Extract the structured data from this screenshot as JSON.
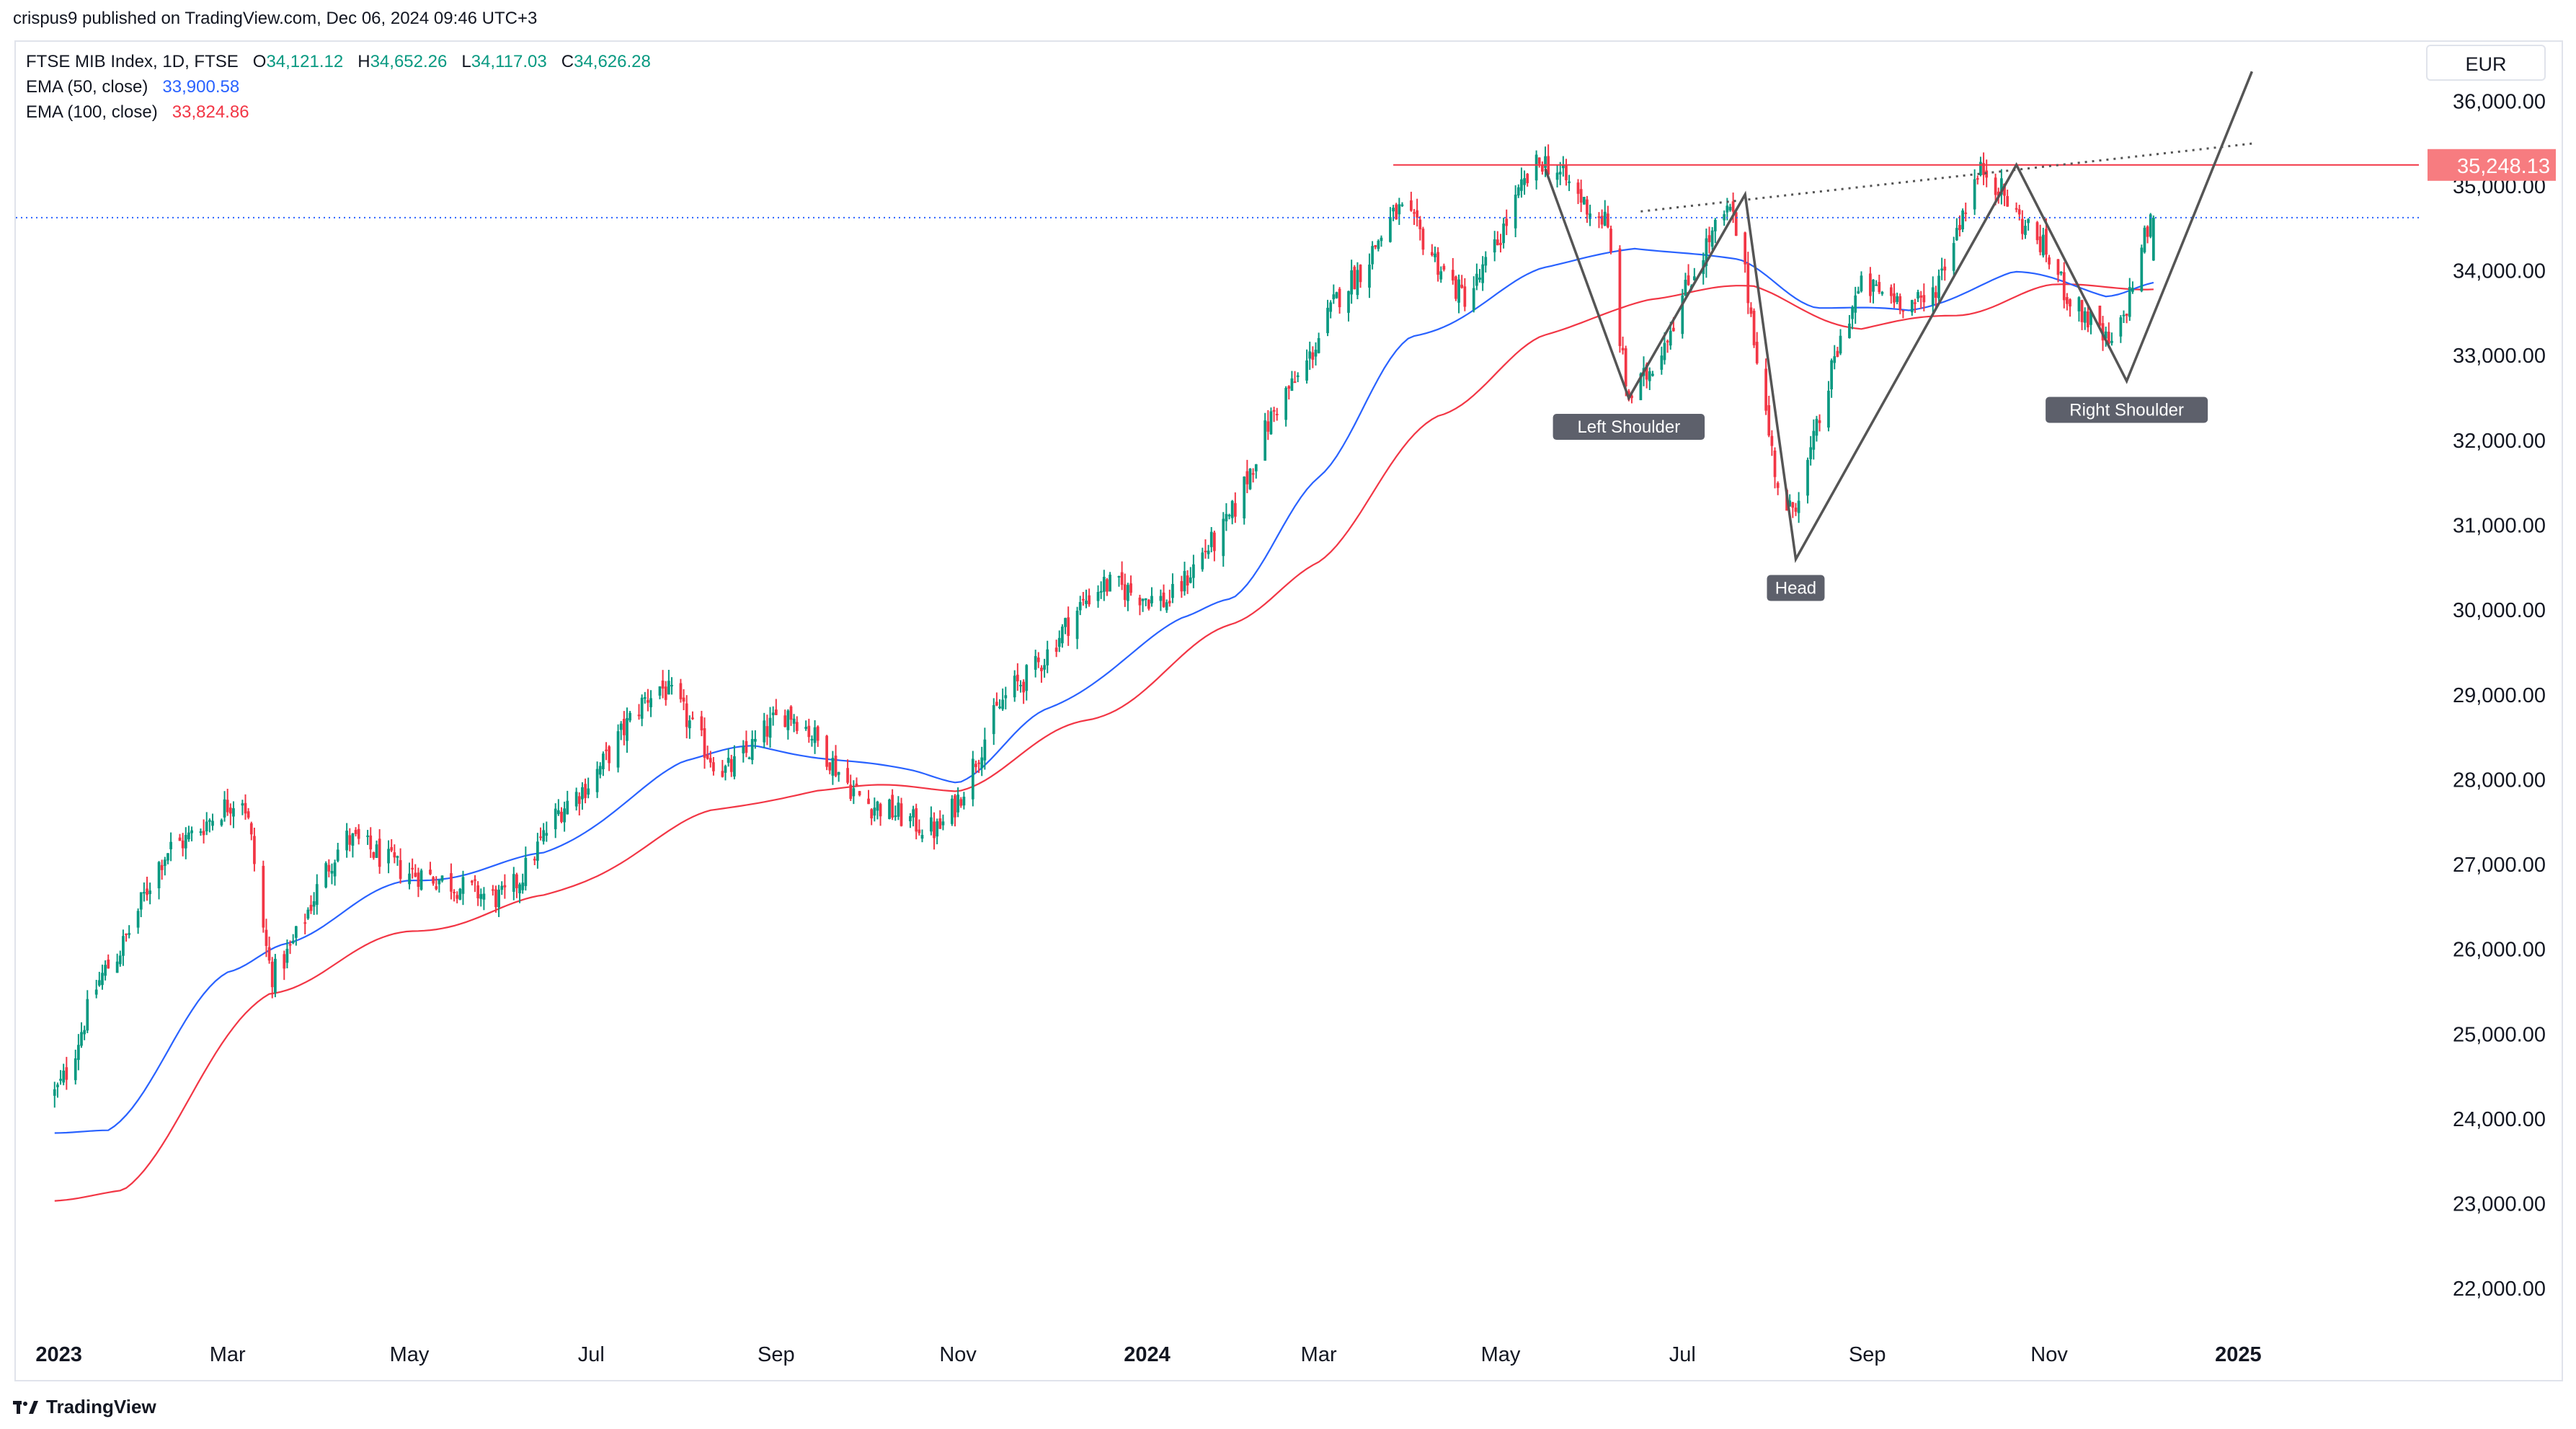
{
  "header": {
    "published": "crispus9 published on TradingView.com, Dec 06, 2024 09:46 UTC+3"
  },
  "legend": {
    "symbol": "FTSE MIB Index, 1D, FTSE",
    "ohlc_o_label": "O",
    "ohlc_o": "34,121.12",
    "ohlc_h_label": "H",
    "ohlc_h": "34,652.26",
    "ohlc_l_label": "L",
    "ohlc_l": "34,117.03",
    "ohlc_c_label": "C",
    "ohlc_c": "34,626.28",
    "ema50_label": "EMA (50, close)",
    "ema50_value": "33,900.58",
    "ema100_label": "EMA (100, close)",
    "ema100_value": "33,824.86"
  },
  "currency": "EUR",
  "footer": {
    "brand": "TradingView"
  },
  "colors": {
    "up": "#089981",
    "down": "#f23645",
    "ema50": "#2962ff",
    "ema100": "#f23645",
    "resistance": "#f23645",
    "pattern": "#555555"
  },
  "chart_data": {
    "type": "candlestick",
    "title": "FTSE MIB Index, 1D, FTSE",
    "ylim": [
      21500,
      36700
    ],
    "y_ticks": [
      "22,000.00",
      "23,000.00",
      "24,000.00",
      "25,000.00",
      "26,000.00",
      "27,000.00",
      "28,000.00",
      "29,000.00",
      "30,000.00",
      "31,000.00",
      "32,000.00",
      "33,000.00",
      "34,000.00",
      "35,000.00",
      "36,000.00"
    ],
    "x_ticks": [
      "2023",
      "Mar",
      "May",
      "Jul",
      "Sep",
      "Nov",
      "2024",
      "Mar",
      "May",
      "Jul",
      "Sep",
      "Nov",
      "2025"
    ],
    "x_ticks_bold": [
      "2023",
      "2024",
      "2025"
    ],
    "resistance_level": 35248.13,
    "resistance_label": "35,248.13",
    "last_close": 34626.28,
    "series_close_anchors": [
      [
        "2023-01-02",
        24300
      ],
      [
        "2023-01-20",
        25800
      ],
      [
        "2023-02-10",
        27200
      ],
      [
        "2023-03-06",
        27800
      ],
      [
        "2023-03-16",
        25700
      ],
      [
        "2023-04-10",
        27300
      ],
      [
        "2023-05-02",
        26900
      ],
      [
        "2023-06-01",
        26600
      ],
      [
        "2023-06-25",
        27800
      ],
      [
        "2023-07-24",
        29100
      ],
      [
        "2023-08-15",
        28100
      ],
      [
        "2023-09-05",
        28800
      ],
      [
        "2023-10-03",
        27700
      ],
      [
        "2023-10-25",
        27400
      ],
      [
        "2023-11-20",
        29100
      ],
      [
        "2023-12-20",
        30300
      ],
      [
        "2024-01-10",
        30100
      ],
      [
        "2024-01-26",
        30800
      ],
      [
        "2024-02-20",
        32600
      ],
      [
        "2024-03-12",
        33900
      ],
      [
        "2024-03-28",
        34700
      ],
      [
        "2024-04-19",
        33700
      ],
      [
        "2024-05-15",
        35300
      ],
      [
        "2024-06-05",
        34600
      ],
      [
        "2024-06-13",
        32500
      ],
      [
        "2024-07-17",
        34700
      ],
      [
        "2024-08-05",
        31100
      ],
      [
        "2024-08-30",
        33800
      ],
      [
        "2024-09-20",
        33600
      ],
      [
        "2024-10-10",
        35200
      ],
      [
        "2024-10-25",
        34500
      ],
      [
        "2024-11-12",
        33500
      ],
      [
        "2024-11-22",
        33100
      ],
      [
        "2024-12-06",
        34626
      ]
    ],
    "ema50_anchors": [
      [
        "2023-01-02",
        23800
      ],
      [
        "2023-01-20",
        23900
      ],
      [
        "2023-03-01",
        25700
      ],
      [
        "2023-03-20",
        26100
      ],
      [
        "2023-05-01",
        26800
      ],
      [
        "2023-06-15",
        27100
      ],
      [
        "2023-08-01",
        28200
      ],
      [
        "2023-08-25",
        28400
      ],
      [
        "2023-10-15",
        28100
      ],
      [
        "2023-11-01",
        28000
      ],
      [
        "2023-12-01",
        28800
      ],
      [
        "2024-01-15",
        29900
      ],
      [
        "2024-02-01",
        30100
      ],
      [
        "2024-03-01",
        31600
      ],
      [
        "2024-04-01",
        33200
      ],
      [
        "2024-05-15",
        34000
      ],
      [
        "2024-06-15",
        34300
      ],
      [
        "2024-07-20",
        34100
      ],
      [
        "2024-08-15",
        33600
      ],
      [
        "2024-09-15",
        33500
      ],
      [
        "2024-10-20",
        34000
      ],
      [
        "2024-11-20",
        33700
      ],
      [
        "2024-12-06",
        33900
      ]
    ],
    "ema100_anchors": [
      [
        "2023-01-02",
        23000
      ],
      [
        "2023-01-25",
        23200
      ],
      [
        "2023-03-15",
        25500
      ],
      [
        "2023-05-01",
        26200
      ],
      [
        "2023-06-15",
        26600
      ],
      [
        "2023-08-10",
        27600
      ],
      [
        "2023-09-15",
        27900
      ],
      [
        "2023-11-01",
        27900
      ],
      [
        "2023-12-15",
        28700
      ],
      [
        "2024-02-01",
        29800
      ],
      [
        "2024-03-01",
        30600
      ],
      [
        "2024-04-10",
        32300
      ],
      [
        "2024-05-15",
        33200
      ],
      [
        "2024-06-20",
        33700
      ],
      [
        "2024-07-25",
        33800
      ],
      [
        "2024-08-30",
        33300
      ],
      [
        "2024-10-01",
        33500
      ],
      [
        "2024-11-01",
        33800
      ],
      [
        "2024-12-06",
        33820
      ]
    ],
    "pattern": {
      "zigzag": [
        [
          "2024-05-16",
          35200
        ],
        [
          "2024-06-13",
          32500
        ],
        [
          "2024-07-22",
          34900
        ],
        [
          "2024-08-08",
          30600
        ],
        [
          "2024-10-21",
          35250
        ],
        [
          "2024-11-27",
          32700
        ],
        [
          "2025-01-08",
          36350
        ]
      ],
      "neckline": [
        [
          "2024-06-17",
          34700
        ],
        [
          "2025-01-08",
          35500
        ]
      ],
      "labels": [
        {
          "text": "Left Shoulder",
          "date": "2024-06-13",
          "value": 32500
        },
        {
          "text": "Head",
          "date": "2024-08-08",
          "value": 30600
        },
        {
          "text": "Right Shoulder",
          "date": "2024-11-27",
          "value": 32700
        }
      ]
    },
    "resistance_start": "2024-03-26"
  }
}
